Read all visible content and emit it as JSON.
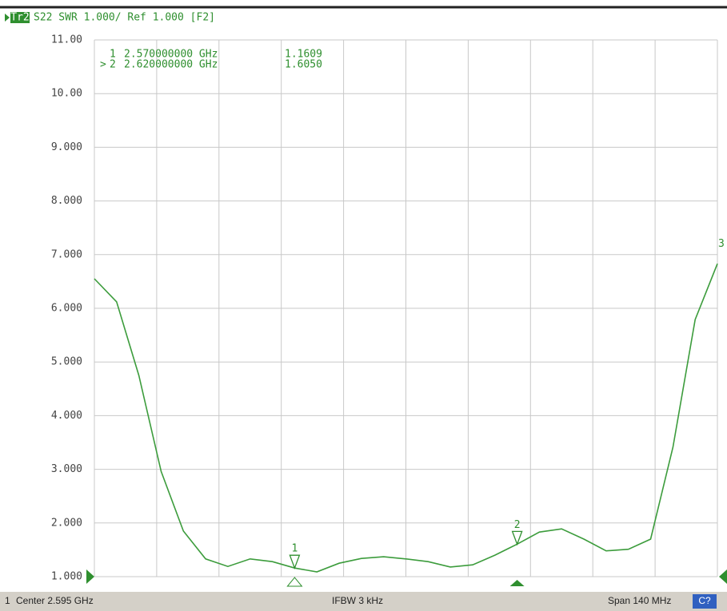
{
  "chart_data": {
    "type": "line",
    "trace": "Tr2",
    "title": "S22 SWR 1.000/ Ref 1.000 [F2]",
    "scale_marker": "3",
    "x": [
      2.525,
      2.53,
      2.535,
      2.54,
      2.545,
      2.55,
      2.555,
      2.56,
      2.565,
      2.57,
      2.575,
      2.58,
      2.585,
      2.59,
      2.595,
      2.6,
      2.605,
      2.61,
      2.615,
      2.62,
      2.625,
      2.63,
      2.635,
      2.64,
      2.645,
      2.65,
      2.655,
      2.66,
      2.665
    ],
    "series": [
      {
        "color": "#3c9c3c",
        "values": [
          6.55,
          6.12,
          4.75,
          2.96,
          1.85,
          1.33,
          1.19,
          1.33,
          1.28,
          1.16,
          1.09,
          1.25,
          1.34,
          1.37,
          1.33,
          1.28,
          1.18,
          1.22,
          1.4,
          1.605,
          1.83,
          1.89,
          1.7,
          1.48,
          1.51,
          1.7,
          3.41,
          5.79,
          6.83
        ]
      }
    ],
    "xlim": [
      2.525,
      2.665
    ],
    "ylim": [
      1,
      11
    ],
    "yticks": [
      {
        "value": 11,
        "label": "11.00"
      },
      {
        "value": 10,
        "label": "10.00"
      },
      {
        "value": 9,
        "label": "9.000"
      },
      {
        "value": 8,
        "label": "8.000"
      },
      {
        "value": 7,
        "label": "7.000"
      },
      {
        "value": 6,
        "label": "6.000"
      },
      {
        "value": 5,
        "label": "5.000"
      },
      {
        "value": 4,
        "label": "4.000"
      },
      {
        "value": 3,
        "label": "3.000"
      },
      {
        "value": 2,
        "label": "2.000"
      },
      {
        "value": 1,
        "label": "1.000"
      }
    ],
    "grid": true,
    "markers": [
      {
        "name": "1",
        "prefix": "",
        "x": 2.57,
        "x_label": "2.570000000 GHz",
        "y": 1.1609,
        "y_label": "1.1609"
      },
      {
        "name": "2",
        "prefix": ">",
        "x": 2.62,
        "x_label": "2.620000000 GHz",
        "y": 1.605,
        "y_label": "1.6050"
      }
    ],
    "status": {
      "channel": "1",
      "center": "Center 2.595 GHz",
      "ifbw": "IFBW 3 kHz",
      "span": "Span 140 MHz",
      "cal": "C?"
    }
  }
}
